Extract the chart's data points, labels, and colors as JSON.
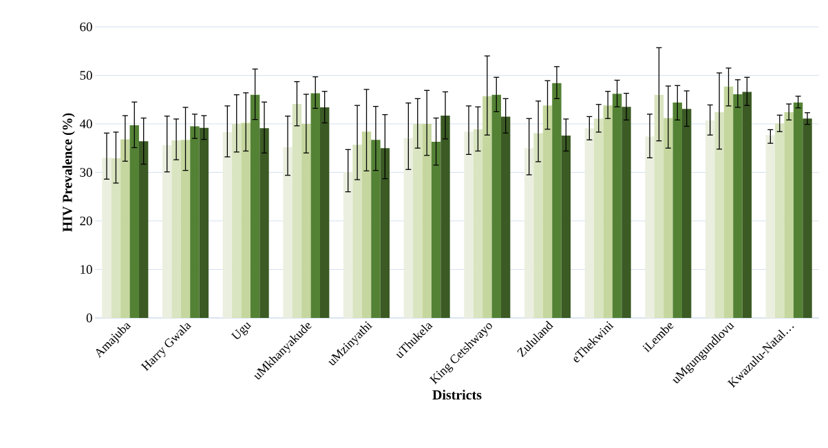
{
  "chart_data": {
    "type": "bar",
    "xlabel": "Districts",
    "ylabel": "HIV Prevalence (%)",
    "categories": [
      "Amajuba",
      "Harry Gwala",
      "Ugu",
      "uMkhanyakude",
      "uMzinyathi",
      "uThukela",
      "King Cetshwayo",
      "Zululand",
      "eThekwini",
      "iLembe",
      "uMgungundlovu",
      "Kwazulu-Natal…"
    ],
    "ylim": [
      0,
      60
    ],
    "yticks": [
      0,
      10,
      20,
      30,
      40,
      50,
      60
    ],
    "grid": "y",
    "series": [
      {
        "color": "#ebefdf",
        "values": [
          33.0,
          35.6,
          38.3,
          35.2,
          30.1,
          37.1,
          38.4,
          35.0,
          39.1,
          37.4,
          40.7,
          37.7
        ],
        "errors": [
          [
            28.6,
            38.1
          ],
          [
            30.1,
            41.6
          ],
          [
            33.2,
            43.7
          ],
          [
            29.4,
            41.6
          ],
          [
            26.0,
            34.7
          ],
          [
            30.6,
            44.3
          ],
          [
            33.7,
            43.7
          ],
          [
            29.5,
            41.1
          ],
          [
            36.7,
            41.5
          ],
          [
            33.0,
            42.0
          ],
          [
            37.7,
            43.9
          ],
          [
            36.0,
            38.8
          ]
        ]
      },
      {
        "color": "#d9e4c0",
        "values": [
          32.9,
          36.6,
          40.0,
          44.1,
          35.7,
          40.0,
          38.9,
          38.1,
          41.1,
          46.0,
          42.4,
          40.1
        ],
        "errors": [
          [
            27.8,
            38.3
          ],
          [
            32.6,
            41.0
          ],
          [
            34.2,
            46.0
          ],
          [
            39.6,
            48.7
          ],
          [
            28.5,
            43.8
          ],
          [
            35.0,
            45.2
          ],
          [
            34.4,
            43.5
          ],
          [
            32.2,
            44.7
          ],
          [
            38.3,
            44.0
          ],
          [
            36.5,
            55.7
          ],
          [
            34.8,
            50.5
          ],
          [
            38.4,
            41.8
          ]
        ]
      },
      {
        "color": "#c5d79e",
        "values": [
          36.8,
          36.7,
          40.2,
          40.0,
          38.4,
          40.0,
          45.7,
          43.8,
          43.8,
          41.2,
          47.7,
          42.4
        ],
        "errors": [
          [
            32.3,
            41.7
          ],
          [
            30.4,
            43.4
          ],
          [
            34.4,
            46.4
          ],
          [
            34.0,
            46.1
          ],
          [
            30.3,
            47.1
          ],
          [
            33.5,
            46.9
          ],
          [
            37.7,
            54.0
          ],
          [
            38.9,
            48.9
          ],
          [
            41.1,
            46.7
          ],
          [
            35.0,
            47.8
          ],
          [
            43.7,
            51.5
          ],
          [
            40.8,
            44.1
          ]
        ]
      },
      {
        "color": "#548235",
        "values": [
          39.7,
          39.5,
          46.0,
          46.3,
          36.7,
          36.3,
          46.0,
          48.4,
          46.2,
          44.4,
          46.1,
          44.4
        ],
        "errors": [
          [
            35.1,
            44.5
          ],
          [
            37.0,
            42.0
          ],
          [
            40.9,
            51.3
          ],
          [
            43.2,
            49.7
          ],
          [
            30.4,
            43.6
          ],
          [
            31.5,
            41.2
          ],
          [
            42.5,
            49.6
          ],
          [
            45.2,
            51.8
          ],
          [
            43.5,
            49.0
          ],
          [
            40.8,
            47.9
          ],
          [
            43.4,
            49.1
          ],
          [
            43.3,
            45.7
          ]
        ]
      },
      {
        "color": "#3b5a24",
        "values": [
          36.4,
          39.2,
          39.1,
          43.4,
          35.0,
          41.7,
          41.5,
          37.6,
          43.5,
          43.1,
          46.6,
          41.1
        ],
        "errors": [
          [
            31.7,
            41.2
          ],
          [
            36.8,
            41.7
          ],
          [
            34.0,
            44.5
          ],
          [
            40.2,
            46.7
          ],
          [
            28.7,
            41.9
          ],
          [
            36.9,
            46.6
          ],
          [
            38.1,
            45.2
          ],
          [
            34.4,
            41.0
          ],
          [
            40.8,
            46.3
          ],
          [
            39.5,
            46.8
          ],
          [
            43.8,
            49.6
          ],
          [
            39.9,
            42.3
          ]
        ]
      }
    ]
  }
}
